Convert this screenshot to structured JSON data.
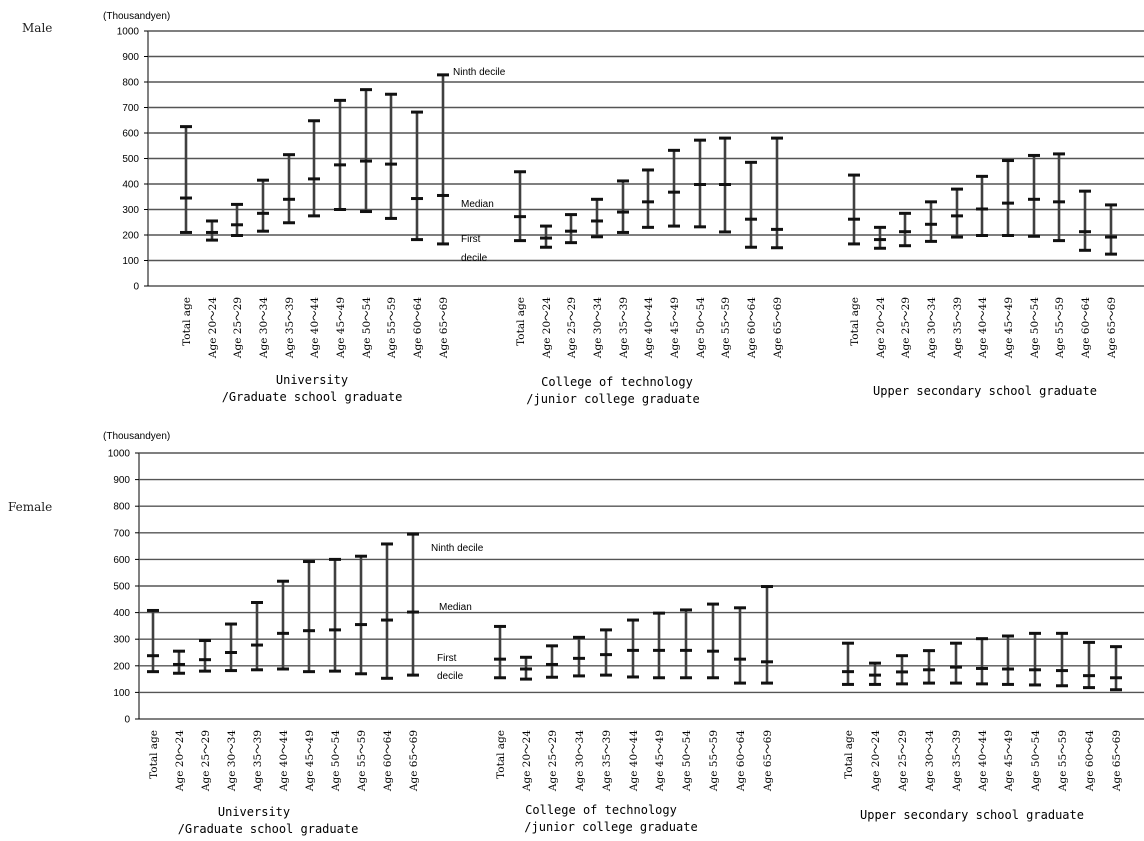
{
  "unit_label": "(Thousandyen)",
  "groups": [
    [
      "University",
      "/Graduate school graduate"
    ],
    [
      "College of technology",
      "/junior college graduate"
    ],
    [
      "Upper secondary school graduate"
    ]
  ],
  "age_categories": [
    "Total age",
    "Age 20～24",
    "Age 25～29",
    "Age 30～34",
    "Age 35～39",
    "Age 40～44",
    "Age 45～49",
    "Age 50～54",
    "Age 55～59",
    "Age 60～64",
    "Age 65～69"
  ],
  "annotations": {
    "ninth": "Ninth decile",
    "median": "Median",
    "first_line1": "First",
    "first_line2": "decile"
  },
  "chart_data": [
    {
      "type": "range",
      "panel": "Male",
      "ylim": [
        0,
        1000
      ],
      "yticks": [
        0,
        100,
        200,
        300,
        400,
        500,
        600,
        700,
        800,
        900,
        1000
      ],
      "grid": true,
      "groups": [
        {
          "name": "University /Graduate school graduate",
          "ninth_decile": [
            625,
            255,
            320,
            415,
            515,
            648,
            728,
            770,
            752,
            682,
            828
          ],
          "median": [
            345,
            210,
            240,
            285,
            340,
            420,
            475,
            490,
            478,
            343,
            355
          ],
          "first_decile": [
            210,
            180,
            198,
            215,
            248,
            275,
            300,
            292,
            265,
            182,
            165
          ]
        },
        {
          "name": "College of technology /junior college graduate",
          "ninth_decile": [
            448,
            235,
            280,
            340,
            412,
            455,
            532,
            572,
            580,
            485,
            580
          ],
          "median": [
            272,
            188,
            215,
            255,
            290,
            330,
            368,
            398,
            398,
            262,
            222
          ],
          "first_decile": [
            178,
            152,
            170,
            193,
            210,
            230,
            235,
            232,
            212,
            152,
            150
          ]
        },
        {
          "name": "Upper secondary school graduate",
          "ninth_decile": [
            435,
            230,
            285,
            330,
            380,
            430,
            492,
            512,
            518,
            372,
            318
          ],
          "median": [
            262,
            182,
            213,
            242,
            275,
            302,
            325,
            340,
            330,
            213,
            192
          ],
          "first_decile": [
            165,
            148,
            158,
            175,
            192,
            198,
            198,
            195,
            178,
            140,
            125
          ]
        }
      ]
    },
    {
      "type": "range",
      "panel": "Female",
      "ylim": [
        0,
        1000
      ],
      "yticks": [
        0,
        100,
        200,
        300,
        400,
        500,
        600,
        700,
        800,
        900,
        1000
      ],
      "grid": true,
      "groups": [
        {
          "name": "University /Graduate school graduate",
          "ninth_decile": [
            408,
            255,
            295,
            357,
            438,
            518,
            592,
            600,
            612,
            658,
            695
          ],
          "median": [
            238,
            205,
            223,
            250,
            278,
            322,
            332,
            335,
            355,
            372,
            402
          ],
          "first_decile": [
            178,
            172,
            180,
            182,
            185,
            188,
            178,
            180,
            170,
            153,
            165
          ]
        },
        {
          "name": "College of technology /junior college graduate",
          "ninth_decile": [
            348,
            232,
            275,
            307,
            335,
            372,
            398,
            410,
            432,
            418,
            498
          ],
          "median": [
            225,
            188,
            205,
            228,
            242,
            258,
            258,
            258,
            255,
            225,
            215
          ],
          "first_decile": [
            155,
            150,
            157,
            162,
            165,
            158,
            155,
            155,
            155,
            135,
            135
          ]
        },
        {
          "name": "Upper secondary school graduate",
          "ninth_decile": [
            285,
            210,
            238,
            257,
            285,
            302,
            312,
            322,
            322,
            288,
            272
          ],
          "median": [
            178,
            165,
            177,
            185,
            195,
            190,
            188,
            185,
            182,
            163,
            155
          ],
          "first_decile": [
            130,
            130,
            132,
            135,
            135,
            132,
            130,
            128,
            125,
            118,
            110
          ]
        }
      ]
    }
  ]
}
